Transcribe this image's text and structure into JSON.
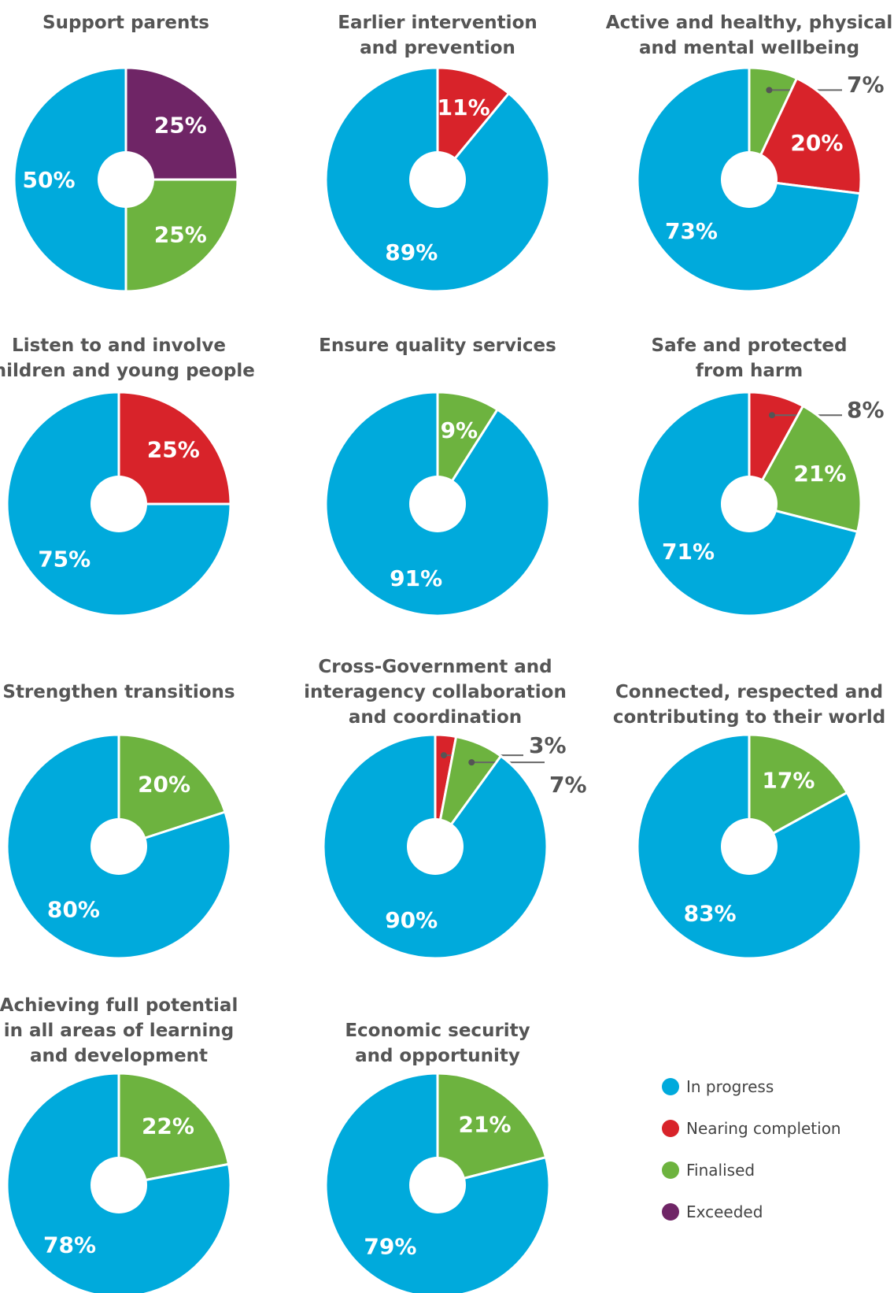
{
  "colors": {
    "in_progress": "#00aadc",
    "nearing_completion": "#d8232a",
    "finalised": "#6db33f",
    "exceeded": "#6f2566"
  },
  "legend": [
    {
      "key": "in_progress",
      "label": "In progress"
    },
    {
      "key": "nearing_completion",
      "label": "Nearing completion"
    },
    {
      "key": "finalised",
      "label": "Finalised"
    },
    {
      "key": "exceeded",
      "label": "Exceeded"
    }
  ],
  "chart_data": [
    {
      "type": "pie",
      "title": [
        "Support parents"
      ],
      "slices": [
        {
          "series": "exceeded",
          "value": 25,
          "label": "25%"
        },
        {
          "series": "finalised",
          "value": 25,
          "label": "25%"
        },
        {
          "series": "in_progress",
          "value": 50,
          "label": "50%"
        }
      ]
    },
    {
      "type": "pie",
      "title": [
        "Earlier intervention",
        "and prevention"
      ],
      "slices": [
        {
          "series": "nearing_completion",
          "value": 11,
          "label": "11%"
        },
        {
          "series": "in_progress",
          "value": 89,
          "label": "89%"
        }
      ]
    },
    {
      "type": "pie",
      "title": [
        "Active and healthy, physical",
        "and mental wellbeing"
      ],
      "slices": [
        {
          "series": "finalised",
          "value": 7,
          "label": "7%"
        },
        {
          "series": "nearing_completion",
          "value": 20,
          "label": "20%"
        },
        {
          "series": "in_progress",
          "value": 73,
          "label": "73%"
        }
      ]
    },
    {
      "type": "pie",
      "title": [
        "Listen to and involve",
        "children and young people"
      ],
      "slices": [
        {
          "series": "nearing_completion",
          "value": 25,
          "label": "25%"
        },
        {
          "series": "in_progress",
          "value": 75,
          "label": "75%"
        }
      ]
    },
    {
      "type": "pie",
      "title": [
        "Ensure quality services"
      ],
      "slices": [
        {
          "series": "finalised",
          "value": 9,
          "label": "9%"
        },
        {
          "series": "in_progress",
          "value": 91,
          "label": "91%"
        }
      ]
    },
    {
      "type": "pie",
      "title": [
        "Safe and protected",
        "from harm"
      ],
      "slices": [
        {
          "series": "nearing_completion",
          "value": 8,
          "label": "8%"
        },
        {
          "series": "finalised",
          "value": 21,
          "label": "21%"
        },
        {
          "series": "in_progress",
          "value": 71,
          "label": "71%"
        }
      ]
    },
    {
      "type": "pie",
      "title": [
        "Strengthen transitions"
      ],
      "slices": [
        {
          "series": "finalised",
          "value": 20,
          "label": "20%"
        },
        {
          "series": "in_progress",
          "value": 80,
          "label": "80%"
        }
      ]
    },
    {
      "type": "pie",
      "title": [
        "Cross-Government and",
        "interagency collaboration",
        "and coordination"
      ],
      "slices": [
        {
          "series": "nearing_completion",
          "value": 3,
          "label": "3%"
        },
        {
          "series": "finalised",
          "value": 7,
          "label": "7%"
        },
        {
          "series": "in_progress",
          "value": 90,
          "label": "90%"
        }
      ]
    },
    {
      "type": "pie",
      "title": [
        "Connected, respected and",
        "contributing to their world"
      ],
      "slices": [
        {
          "series": "finalised",
          "value": 17,
          "label": "17%"
        },
        {
          "series": "in_progress",
          "value": 83,
          "label": "83%"
        }
      ]
    },
    {
      "type": "pie",
      "title": [
        "Achieving full potential",
        "in all areas of learning",
        "and development"
      ],
      "slices": [
        {
          "series": "finalised",
          "value": 22,
          "label": "22%"
        },
        {
          "series": "in_progress",
          "value": 78,
          "label": "78%"
        }
      ]
    },
    {
      "type": "pie",
      "title": [
        "Economic security",
        "and opportunity"
      ],
      "slices": [
        {
          "series": "finalised",
          "value": 21,
          "label": "21%"
        },
        {
          "series": "in_progress",
          "value": 79,
          "label": "79%"
        }
      ]
    }
  ]
}
